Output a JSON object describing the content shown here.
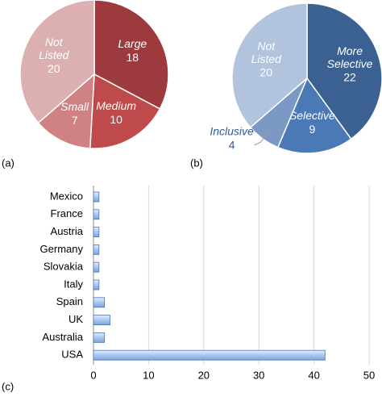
{
  "chart_data": [
    {
      "type": "pie",
      "panel_label": "(a)",
      "categories": [
        "Large",
        "Medium",
        "Small",
        "Not Listed"
      ],
      "values": [
        18,
        10,
        7,
        20
      ],
      "colors": [
        "#9c3a3d",
        "#bf4a4c",
        "#cf8183",
        "#dcb0b1"
      ]
    },
    {
      "type": "pie",
      "panel_label": "(b)",
      "categories": [
        "More Selective",
        "Selective",
        "Inclusive",
        "Not Listed"
      ],
      "values": [
        22,
        9,
        4,
        20
      ],
      "colors": [
        "#3b6192",
        "#4b79b6",
        "#7c99c6",
        "#b1c3dd"
      ]
    },
    {
      "type": "hbar",
      "panel_label": "(c)",
      "categories": [
        "Mexico",
        "France",
        "Austria",
        "Germany",
        "Slovakia",
        "Italy",
        "Spain",
        "UK",
        "Australia",
        "USA"
      ],
      "values": [
        1,
        1,
        1,
        1,
        1,
        1,
        2,
        3,
        2,
        42
      ],
      "color": "#a9c6ef",
      "xlim": [
        0,
        50
      ],
      "xticks": [
        0,
        10,
        20,
        30,
        40,
        50
      ],
      "grid": true
    }
  ]
}
